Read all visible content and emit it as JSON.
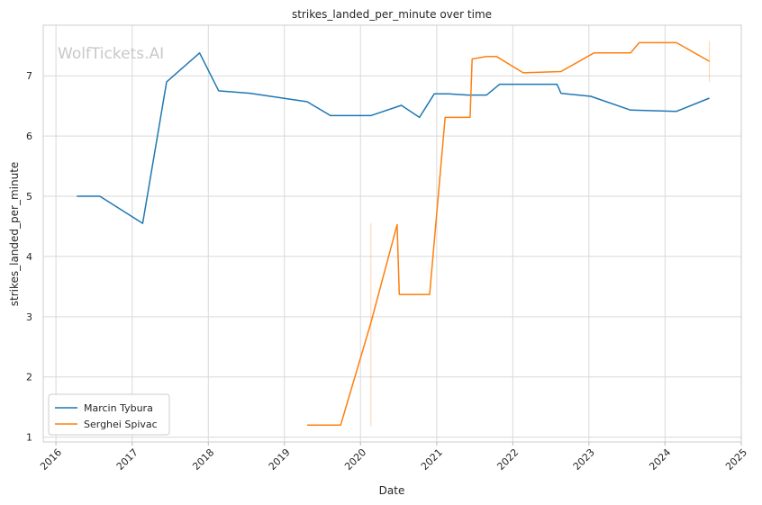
{
  "watermark": "WolfTickets.AI",
  "chart_data": {
    "type": "line",
    "title": "strikes_landed_per_minute over time",
    "xlabel": "Date",
    "ylabel": "strikes_landed_per_minute",
    "x_range": [
      "2015-11-01",
      "2025-01-01"
    ],
    "ylim": [
      0.92,
      7.84
    ],
    "x_ticks": [
      "2016",
      "2017",
      "2018",
      "2019",
      "2020",
      "2021",
      "2022",
      "2023",
      "2024",
      "2025"
    ],
    "y_ticks": [
      1,
      2,
      3,
      4,
      5,
      6,
      7
    ],
    "grid": true,
    "legend_position": "lower-left",
    "series": [
      {
        "name": "Marcin Tybura",
        "color": "#1f77b4",
        "points": [
          [
            "2016-04-10",
            5.0
          ],
          [
            "2016-07-30",
            5.0
          ],
          [
            "2017-02-20",
            4.55
          ],
          [
            "2017-06-15",
            6.9
          ],
          [
            "2017-11-20",
            7.38
          ],
          [
            "2018-02-20",
            6.75
          ],
          [
            "2018-07-20",
            6.71
          ],
          [
            "2019-04-20",
            6.57
          ],
          [
            "2019-08-10",
            6.34
          ],
          [
            "2020-02-20",
            6.34
          ],
          [
            "2020-07-15",
            6.51
          ],
          [
            "2020-10-10",
            6.31
          ],
          [
            "2020-12-20",
            6.7
          ],
          [
            "2021-02-27",
            6.7
          ],
          [
            "2021-06-01",
            6.68
          ],
          [
            "2021-08-28",
            6.68
          ],
          [
            "2021-10-30",
            6.86
          ],
          [
            "2022-08-01",
            6.86
          ],
          [
            "2022-08-20",
            6.71
          ],
          [
            "2023-01-10",
            6.66
          ],
          [
            "2023-07-20",
            6.43
          ],
          [
            "2024-02-25",
            6.41
          ],
          [
            "2024-08-01",
            6.63
          ]
        ]
      },
      {
        "name": "Serghei Spivac",
        "color": "#ff7f0e",
        "points": [
          [
            "2019-04-20",
            1.2
          ],
          [
            "2019-09-28",
            1.2
          ],
          [
            "2020-02-20",
            2.9
          ],
          [
            "2020-06-25",
            4.53
          ],
          [
            "2020-07-05",
            3.37
          ],
          [
            "2020-11-28",
            3.37
          ],
          [
            "2021-02-10",
            6.31
          ],
          [
            "2021-06-10",
            6.31
          ],
          [
            "2021-06-20",
            7.28
          ],
          [
            "2021-08-28",
            7.32
          ],
          [
            "2021-10-15",
            7.32
          ],
          [
            "2022-02-20",
            7.05
          ],
          [
            "2022-08-20",
            7.07
          ],
          [
            "2023-01-25",
            7.38
          ],
          [
            "2023-07-20",
            7.38
          ],
          [
            "2023-08-30",
            7.55
          ],
          [
            "2024-02-25",
            7.55
          ],
          [
            "2024-08-01",
            7.24
          ]
        ]
      }
    ],
    "error_bars": [
      {
        "series": "Serghei Spivac",
        "x": "2020-02-20",
        "low": 1.18,
        "high": 4.55
      },
      {
        "series": "Serghei Spivac",
        "x": "2024-08-01",
        "low": 6.9,
        "high": 7.58
      }
    ]
  }
}
